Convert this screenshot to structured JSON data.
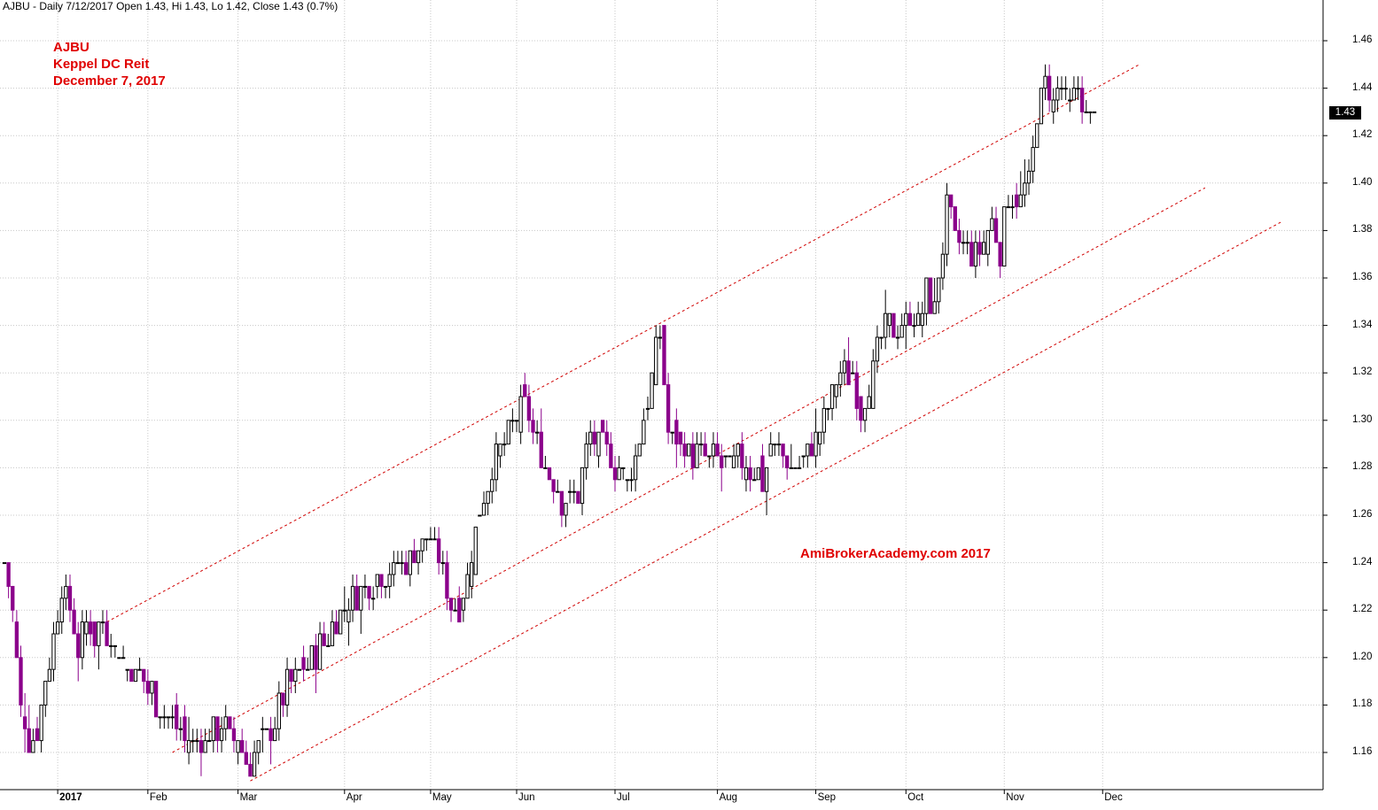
{
  "header": {
    "text": "AJBU - Daily 7/12/2017 Open 1.43, Hi 1.43, Lo 1.42, Close 1.43 (0.7%)"
  },
  "annotations": {
    "symbol": "AJBU",
    "name": "Keppel DC Reit",
    "date": "December 7, 2017",
    "watermark": "AmiBrokerAcademy.com  2017"
  },
  "price_tag": "1.43",
  "colors": {
    "up_candle": "#ffffff",
    "down_candle": "#8b008b",
    "annotation": "#e00000",
    "channel": "#d00000",
    "grid": "#c8c8c8"
  },
  "chart_data": {
    "type": "candlestick",
    "title": "",
    "xlabel": "",
    "ylabel": "",
    "ylim": [
      1.145,
      1.47
    ],
    "y_ticks": [
      "1.16",
      "1.18",
      "1.20",
      "1.22",
      "1.24",
      "1.26",
      "1.28",
      "1.30",
      "1.32",
      "1.34",
      "1.36",
      "1.38",
      "1.40",
      "1.42",
      "1.44",
      "1.46"
    ],
    "x_ticks": [
      {
        "label": "2017",
        "day": 19,
        "bold": true
      },
      {
        "label": "Feb",
        "day": 41
      },
      {
        "label": "Mar",
        "day": 63
      },
      {
        "label": "Apr",
        "day": 89
      },
      {
        "label": "May",
        "day": 110
      },
      {
        "label": "Jun",
        "day": 131
      },
      {
        "label": "Jul",
        "day": 155
      },
      {
        "label": "Aug",
        "day": 180
      },
      {
        "label": "Sep",
        "day": 204
      },
      {
        "label": "Oct",
        "day": 226
      },
      {
        "label": "Nov",
        "day": 250
      },
      {
        "label": "Dec",
        "day": 274
      }
    ],
    "day_range": [
      6,
      340
    ],
    "grid": true,
    "last_close": 1.43,
    "channel_lines": [
      {
        "from": [
          31,
          1.215
        ],
        "to": [
          283,
          1.45
        ]
      },
      {
        "from": [
          47,
          1.16
        ],
        "to": [
          299,
          1.398
        ]
      },
      {
        "from": [
          66,
          1.148
        ],
        "to": [
          318,
          1.384
        ]
      }
    ],
    "anchors": [
      [
        6,
        1.24
      ],
      [
        8,
        1.22
      ],
      [
        10,
        1.18
      ],
      [
        12,
        1.165
      ],
      [
        14,
        1.17
      ],
      [
        16,
        1.19
      ],
      [
        18,
        1.21
      ],
      [
        20,
        1.23
      ],
      [
        22,
        1.22
      ],
      [
        24,
        1.205
      ],
      [
        26,
        1.215
      ],
      [
        28,
        1.21
      ],
      [
        30,
        1.215
      ],
      [
        33,
        1.205
      ],
      [
        36,
        1.195
      ],
      [
        40,
        1.19
      ],
      [
        44,
        1.18
      ],
      [
        48,
        1.17
      ],
      [
        51,
        1.165
      ],
      [
        55,
        1.165
      ],
      [
        59,
        1.17
      ],
      [
        63,
        1.165
      ],
      [
        66,
        1.155
      ],
      [
        68,
        1.16
      ],
      [
        71,
        1.17
      ],
      [
        74,
        1.185
      ],
      [
        79,
        1.195
      ],
      [
        83,
        1.205
      ],
      [
        87,
        1.215
      ],
      [
        91,
        1.225
      ],
      [
        95,
        1.23
      ],
      [
        99,
        1.235
      ],
      [
        103,
        1.24
      ],
      [
        107,
        1.245
      ],
      [
        110,
        1.25
      ],
      [
        113,
        1.235
      ],
      [
        115,
        1.22
      ],
      [
        117,
        1.22
      ],
      [
        119,
        1.235
      ],
      [
        121,
        1.255
      ],
      [
        124,
        1.275
      ],
      [
        128,
        1.29
      ],
      [
        131,
        1.3
      ],
      [
        133,
        1.305
      ],
      [
        136,
        1.29
      ],
      [
        138,
        1.28
      ],
      [
        141,
        1.27
      ],
      [
        143,
        1.265
      ],
      [
        146,
        1.27
      ],
      [
        149,
        1.295
      ],
      [
        152,
        1.29
      ],
      [
        155,
        1.28
      ],
      [
        158,
        1.275
      ],
      [
        160,
        1.285
      ],
      [
        162,
        1.3
      ],
      [
        164,
        1.32
      ],
      [
        166,
        1.335
      ],
      [
        168,
        1.295
      ],
      [
        171,
        1.29
      ],
      [
        174,
        1.285
      ],
      [
        177,
        1.285
      ],
      [
        180,
        1.285
      ],
      [
        182,
        1.28
      ],
      [
        185,
        1.285
      ],
      [
        188,
        1.28
      ],
      [
        191,
        1.275
      ],
      [
        193,
        1.29
      ],
      [
        196,
        1.285
      ],
      [
        199,
        1.28
      ],
      [
        201,
        1.285
      ],
      [
        204,
        1.29
      ],
      [
        207,
        1.305
      ],
      [
        210,
        1.32
      ],
      [
        213,
        1.32
      ],
      [
        215,
        1.305
      ],
      [
        217,
        1.315
      ],
      [
        219,
        1.33
      ],
      [
        221,
        1.34
      ],
      [
        224,
        1.34
      ],
      [
        227,
        1.345
      ],
      [
        229,
        1.34
      ],
      [
        231,
        1.355
      ],
      [
        233,
        1.345
      ],
      [
        236,
        1.39
      ],
      [
        238,
        1.375
      ],
      [
        241,
        1.37
      ],
      [
        244,
        1.37
      ],
      [
        247,
        1.385
      ],
      [
        249,
        1.37
      ],
      [
        251,
        1.395
      ],
      [
        254,
        1.395
      ],
      [
        256,
        1.4
      ],
      [
        258,
        1.43
      ],
      [
        260,
        1.44
      ],
      [
        262,
        1.435
      ],
      [
        264,
        1.44
      ],
      [
        266,
        1.43
      ],
      [
        268,
        1.44
      ],
      [
        270,
        1.425
      ],
      [
        272,
        1.43
      ]
    ]
  }
}
